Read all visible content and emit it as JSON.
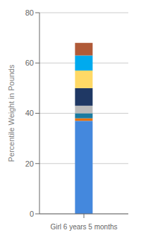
{
  "chart_data": {
    "type": "bar",
    "stacked": true,
    "categories": [
      "Girl 6 years 5 months"
    ],
    "series": [
      {
        "color": "#4488DD",
        "values": [
          37.0
        ]
      },
      {
        "color": "#E8720C",
        "values": [
          1.0
        ]
      },
      {
        "color": "#1A7BA0",
        "values": [
          2.0
        ]
      },
      {
        "color": "#BBBBBB",
        "values": [
          3.0
        ]
      },
      {
        "color": "#1F3864",
        "values": [
          7.0
        ]
      },
      {
        "color": "#FFD966",
        "values": [
          7.0
        ]
      },
      {
        "color": "#00AAEE",
        "values": [
          6.0
        ]
      },
      {
        "color": "#B05A38",
        "values": [
          5.0
        ]
      }
    ],
    "ylabel": "Percentile Weight in Pounds",
    "ylim": [
      0,
      80
    ],
    "yticks": [
      0,
      20,
      40,
      60,
      80
    ],
    "grid": true
  }
}
